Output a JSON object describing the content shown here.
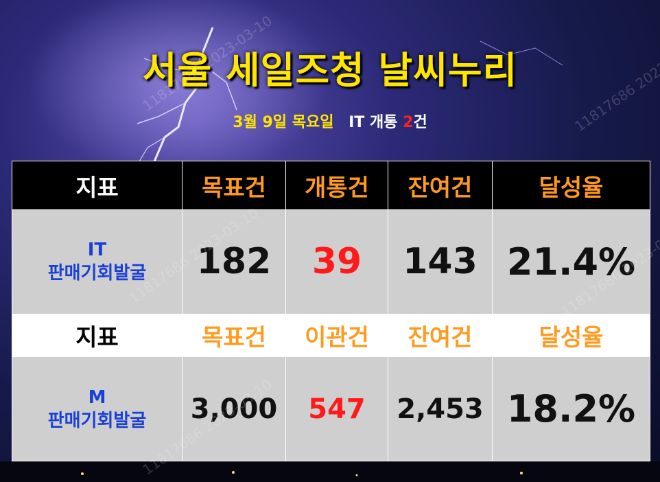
{
  "title": "서울 세일즈청 날씨누리",
  "subtitle": {
    "date": "3월 9일 목요일",
    "it_label": "IT 개통",
    "count": "2",
    "unit": "건"
  },
  "header_row": {
    "label": "지표",
    "cols": [
      "목표건",
      "개통건",
      "잔여건",
      "달성율"
    ]
  },
  "it_row": {
    "label_line1": "IT",
    "label_line2": "판매기회발굴",
    "target": "182",
    "done": "39",
    "remain": "143",
    "rate": "21.4%"
  },
  "sub_header_row": {
    "label": "지표",
    "cols": [
      "목표건",
      "이관건",
      "잔여건",
      "달성율"
    ]
  },
  "m_row": {
    "label_line1": "M",
    "label_line2": "판매기회발굴",
    "target": "3,000",
    "done": "547",
    "remain": "2,453",
    "rate": "18.2%"
  },
  "watermark": "11817686 2023-03-10",
  "colors": {
    "title": "#ffe600",
    "header_text": "#ff9a1e",
    "highlight": "#ff1a1a",
    "row_label": "#1a3fd6"
  }
}
